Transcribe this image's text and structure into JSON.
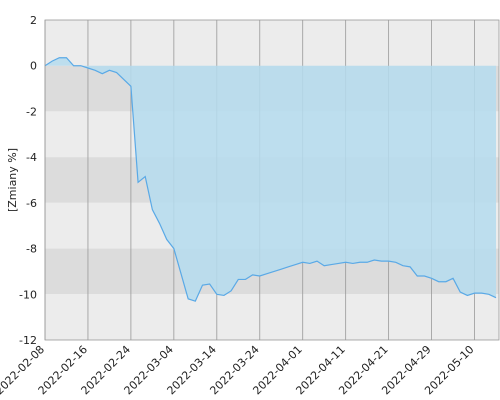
{
  "chart_data": {
    "type": "area",
    "y_label": "[Zmiany %]",
    "x": [
      "2022-02-08",
      "2022-02-09",
      "2022-02-10",
      "2022-02-11",
      "2022-02-14",
      "2022-02-15",
      "2022-02-16",
      "2022-02-17",
      "2022-02-18",
      "2022-02-21",
      "2022-02-22",
      "2022-02-23",
      "2022-02-24",
      "2022-02-25",
      "2022-02-28",
      "2022-03-01",
      "2022-03-02",
      "2022-03-03",
      "2022-03-04",
      "2022-03-07",
      "2022-03-08",
      "2022-03-09",
      "2022-03-10",
      "2022-03-11",
      "2022-03-14",
      "2022-03-15",
      "2022-03-16",
      "2022-03-17",
      "2022-03-18",
      "2022-03-21",
      "2022-03-24",
      "2022-03-25",
      "2022-03-28",
      "2022-03-29",
      "2022-03-30",
      "2022-03-31",
      "2022-04-01",
      "2022-04-04",
      "2022-04-05",
      "2022-04-06",
      "2022-04-07",
      "2022-04-08",
      "2022-04-11",
      "2022-04-12",
      "2022-04-13",
      "2022-04-14",
      "2022-04-19",
      "2022-04-20",
      "2022-04-21",
      "2022-04-22",
      "2022-04-25",
      "2022-04-26",
      "2022-04-27",
      "2022-04-28",
      "2022-04-29",
      "2022-05-02",
      "2022-05-04",
      "2022-05-05",
      "2022-05-06",
      "2022-05-09",
      "2022-05-10",
      "2022-05-11",
      "2022-05-12",
      "2022-05-13"
    ],
    "values": [
      0,
      0.2,
      0.35,
      0.35,
      0,
      0,
      -0.1,
      -0.2,
      -0.35,
      -0.2,
      -0.3,
      -0.6,
      -0.9,
      -5.1,
      -4.85,
      -6.3,
      -6.9,
      -7.6,
      -8.0,
      -9.1,
      -10.2,
      -10.3,
      -9.6,
      -9.55,
      -10.0,
      -10.05,
      -9.85,
      -9.35,
      -9.35,
      -9.15,
      -9.2,
      -9.1,
      -9.0,
      -8.9,
      -8.8,
      -8.7,
      -8.6,
      -8.65,
      -8.55,
      -8.75,
      -8.7,
      -8.65,
      -8.6,
      -8.65,
      -8.6,
      -8.6,
      -8.5,
      -8.55,
      -8.55,
      -8.6,
      -8.75,
      -8.8,
      -9.2,
      -9.2,
      -9.3,
      -9.45,
      -9.45,
      -9.3,
      -9.9,
      -10.05,
      -9.95,
      -9.95,
      -10.0,
      -10.15
    ],
    "color": "#5aa9e6",
    "fill_color": "#b5dcef",
    "xticks": [
      "2022-02-08",
      "2022-02-16",
      "2022-02-24",
      "2022-03-04",
      "2022-03-14",
      "2022-03-24",
      "2022-04-01",
      "2022-04-11",
      "2022-04-21",
      "2022-04-29",
      "2022-05-10"
    ],
    "ylim": [
      -12,
      2
    ],
    "yticks": [
      2,
      0,
      -2,
      -4,
      -6,
      -8,
      -10,
      -12
    ],
    "grid": true
  }
}
